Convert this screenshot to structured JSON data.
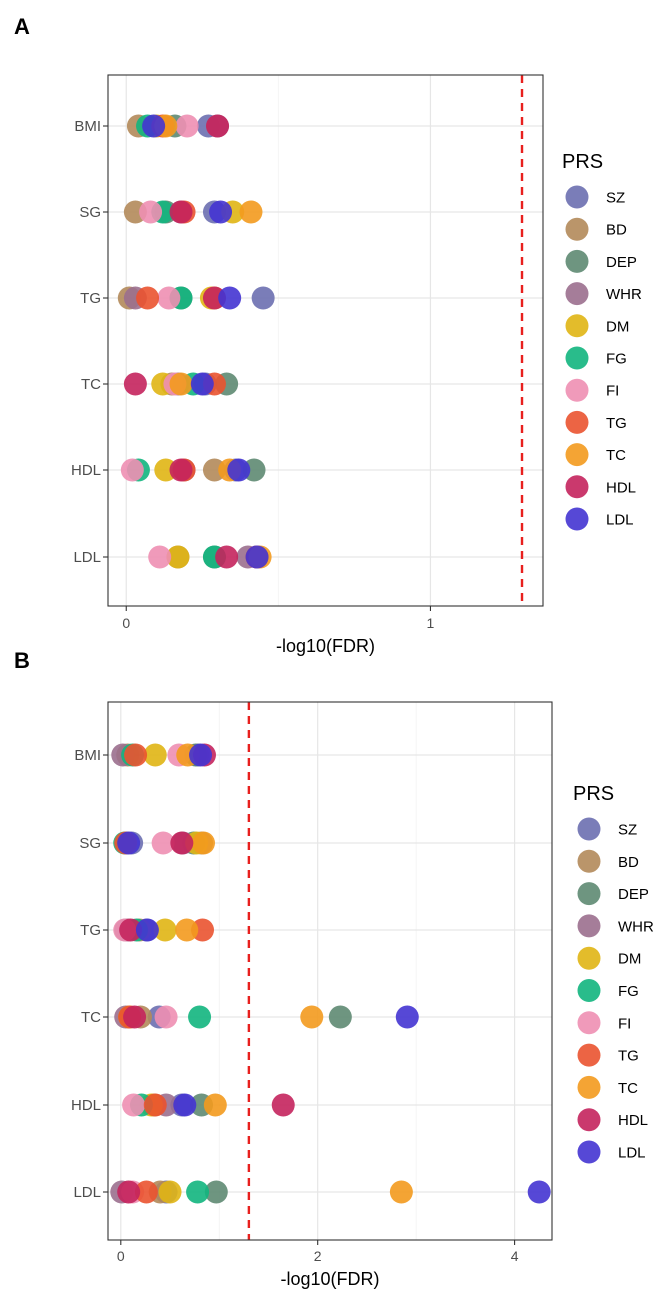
{
  "figure": {
    "legend_title": "PRS",
    "series_colors": {
      "SZ": "#6b6fb0",
      "BD": "#b3895a",
      "DEP": "#5e8a72",
      "WHR": "#9b6f8e",
      "DM": "#e0b514",
      "FG": "#12b57e",
      "FI": "#ee8fb3",
      "TG": "#ea5330",
      "TC": "#f39a1e",
      "HDL": "#c4245d",
      "LDL": "#4434d2"
    },
    "threshold_color": "#e8201e"
  },
  "chart_data": [
    {
      "panel_label": "A",
      "type": "scatter",
      "xlabel": "-log10(FDR)",
      "ylabel": "",
      "xlim": [
        -0.06,
        1.37
      ],
      "xticks": [
        "0",
        "1"
      ],
      "xtick_values": [
        0,
        1
      ],
      "categories": [
        "BMI",
        "SG",
        "TG",
        "TC",
        "HDL",
        "LDL"
      ],
      "threshold_x": 1.301,
      "legend": {
        "title": "PRS",
        "position": "right",
        "entries": [
          "SZ",
          "BD",
          "DEP",
          "WHR",
          "DM",
          "FG",
          "FI",
          "TG",
          "TC",
          "HDL",
          "LDL"
        ]
      },
      "grid": true,
      "series": [
        {
          "name": "SZ",
          "values": {
            "BMI": 0.27,
            "SG": 0.29,
            "TG": 0.45,
            "TC": 0.26,
            "HDL": 0.36,
            "LDL": 0.43
          }
        },
        {
          "name": "BD",
          "values": {
            "BMI": 0.04,
            "SG": 0.03,
            "TG": 0.01,
            "TC": 0.15,
            "HDL": 0.29,
            "LDL": 0.17
          }
        },
        {
          "name": "DEP",
          "values": {
            "BMI": 0.16,
            "SG": 0.13,
            "TG": 0.18,
            "TC": 0.33,
            "HDL": 0.42,
            "LDL": 0.29
          }
        },
        {
          "name": "WHR",
          "values": {
            "BMI": 0.3,
            "SG": 0.18,
            "TG": 0.03,
            "TC": 0.17,
            "HDL": 0.19,
            "LDL": 0.4
          }
        },
        {
          "name": "DM",
          "values": {
            "BMI": 0.1,
            "SG": 0.35,
            "TG": 0.28,
            "TC": 0.12,
            "HDL": 0.13,
            "LDL": 0.17
          }
        },
        {
          "name": "FG",
          "values": {
            "BMI": 0.07,
            "SG": 0.12,
            "TG": 0.18,
            "TC": 0.22,
            "HDL": 0.04,
            "LDL": 0.29
          }
        },
        {
          "name": "FI",
          "values": {
            "BMI": 0.2,
            "SG": 0.08,
            "TG": 0.14,
            "TC": 0.16,
            "HDL": 0.02,
            "LDL": 0.11
          }
        },
        {
          "name": "TG",
          "values": {
            "BMI": 0.12,
            "SG": 0.19,
            "TG": 0.07,
            "TC": 0.29,
            "HDL": 0.19,
            "LDL": 0.43
          }
        },
        {
          "name": "TC",
          "values": {
            "BMI": 0.13,
            "SG": 0.41,
            "TG": 0.29,
            "TC": 0.18,
            "HDL": 0.34,
            "LDL": 0.44
          }
        },
        {
          "name": "HDL",
          "values": {
            "BMI": 0.3,
            "SG": 0.18,
            "TG": 0.29,
            "TC": 0.03,
            "HDL": 0.18,
            "LDL": 0.33
          }
        },
        {
          "name": "LDL",
          "values": {
            "BMI": 0.09,
            "SG": 0.31,
            "TG": 0.34,
            "TC": 0.25,
            "HDL": 0.37,
            "LDL": 0.43
          }
        }
      ]
    },
    {
      "panel_label": "B",
      "type": "scatter",
      "xlabel": "-log10(FDR)",
      "ylabel": "",
      "xlim": [
        -0.13,
        4.38
      ],
      "xticks": [
        "0",
        "2",
        "4"
      ],
      "xtick_values": [
        0,
        2,
        4
      ],
      "categories": [
        "BMI",
        "SG",
        "TG",
        "TC",
        "HDL",
        "LDL"
      ],
      "threshold_x": 1.301,
      "legend": {
        "title": "PRS",
        "position": "right",
        "entries": [
          "SZ",
          "BD",
          "DEP",
          "WHR",
          "DM",
          "FG",
          "FI",
          "TG",
          "TC",
          "HDL",
          "LDL"
        ]
      },
      "grid": true,
      "series": [
        {
          "name": "SZ",
          "values": {
            "BMI": 0.78,
            "SG": 0.11,
            "TG": 0.26,
            "TC": 0.39,
            "HDL": 0.62,
            "LDL": 0.46
          }
        },
        {
          "name": "BD",
          "values": {
            "BMI": 0.07,
            "SG": 0.82,
            "TG": 0.19,
            "TC": 0.2,
            "HDL": 0.34,
            "LDL": 0.4
          }
        },
        {
          "name": "DEP",
          "values": {
            "BMI": 0.76,
            "SG": 0.74,
            "TG": 0.05,
            "TC": 2.23,
            "HDL": 0.82,
            "LDL": 0.97
          }
        },
        {
          "name": "WHR",
          "values": {
            "BMI": 0.02,
            "SG": 0.63,
            "TG": 0.06,
            "TC": 0.05,
            "HDL": 0.46,
            "LDL": 0.01
          }
        },
        {
          "name": "DM",
          "values": {
            "BMI": 0.35,
            "SG": 0.77,
            "TG": 0.45,
            "TC": 0.09,
            "HDL": 0.31,
            "LDL": 0.5
          }
        },
        {
          "name": "FG",
          "values": {
            "BMI": 0.12,
            "SG": 0.04,
            "TG": 0.16,
            "TC": 0.8,
            "HDL": 0.21,
            "LDL": 0.78
          }
        },
        {
          "name": "FI",
          "values": {
            "BMI": 0.59,
            "SG": 0.43,
            "TG": 0.04,
            "TC": 0.46,
            "HDL": 0.13,
            "LDL": 0.12
          }
        },
        {
          "name": "TG",
          "values": {
            "BMI": 0.15,
            "SG": 0.05,
            "TG": 0.83,
            "TC": 0.09,
            "HDL": 0.35,
            "LDL": 0.26
          }
        },
        {
          "name": "TC",
          "values": {
            "BMI": 0.68,
            "SG": 0.84,
            "TG": 0.67,
            "TC": 1.94,
            "HDL": 0.96,
            "LDL": 2.85
          }
        },
        {
          "name": "HDL",
          "values": {
            "BMI": 0.85,
            "SG": 0.62,
            "TG": 0.1,
            "TC": 0.14,
            "HDL": 1.65,
            "LDL": 0.08
          }
        },
        {
          "name": "LDL",
          "values": {
            "BMI": 0.81,
            "SG": 0.08,
            "TG": 0.27,
            "TC": 2.91,
            "HDL": 0.65,
            "LDL": 4.25
          }
        }
      ]
    }
  ]
}
